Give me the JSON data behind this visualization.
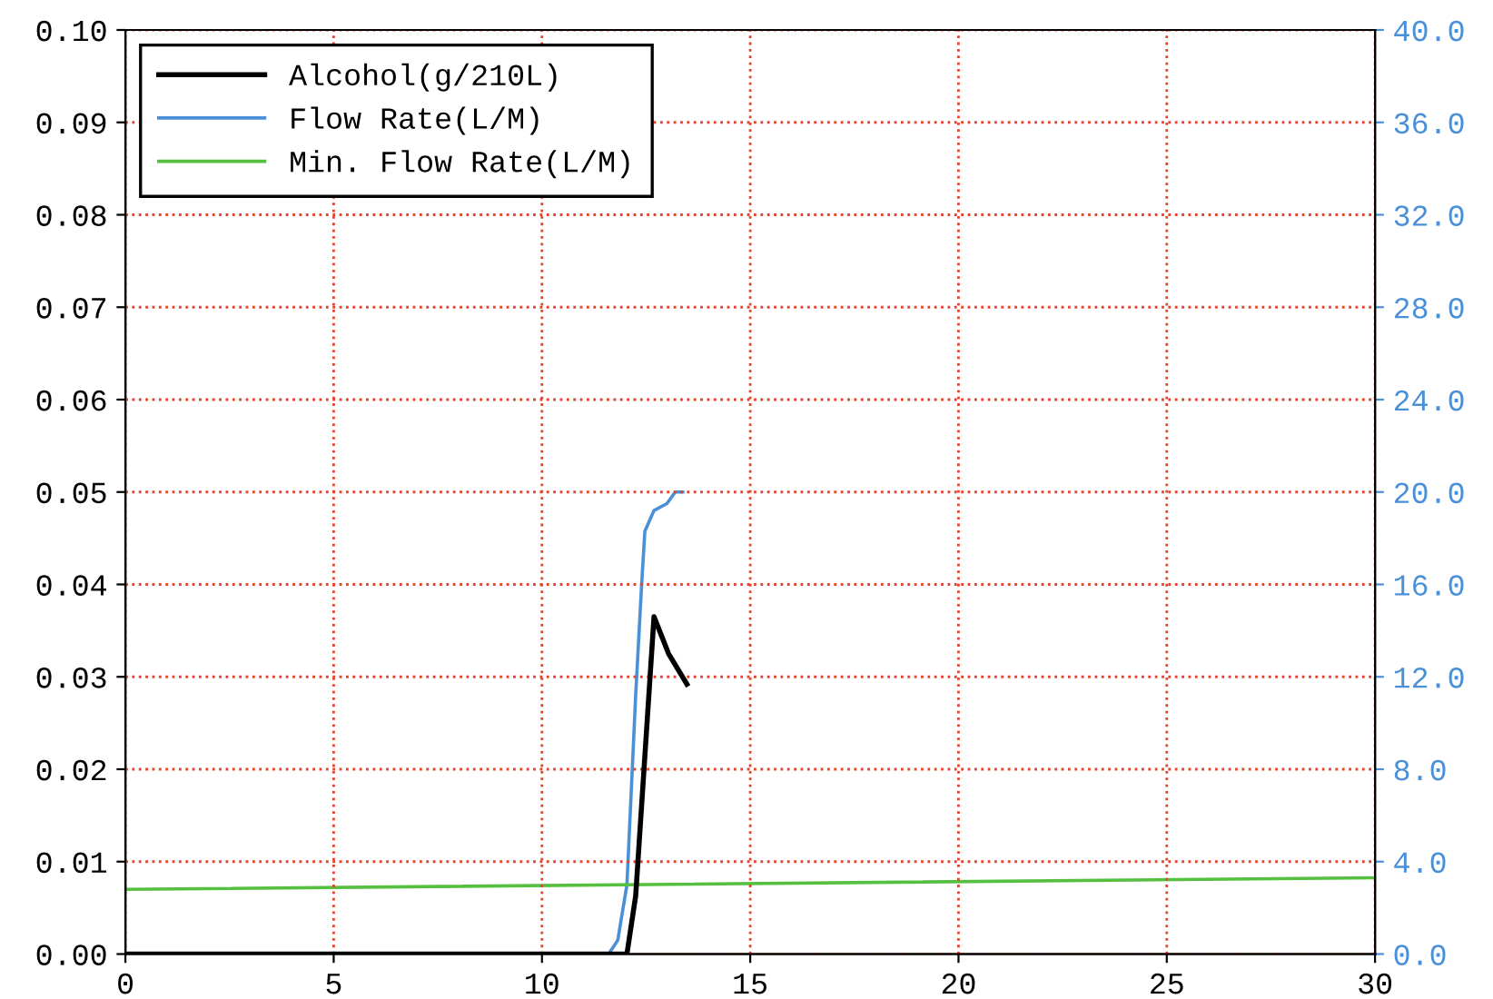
{
  "chart_data": {
    "type": "line",
    "xlim": [
      0,
      30
    ],
    "xticks": [
      0,
      5,
      10,
      15,
      20,
      25,
      30
    ],
    "ylim": [
      0,
      0.1
    ],
    "yticks": [
      {
        "value": 0,
        "label": "0.00"
      },
      {
        "value": 0.01,
        "label": "0.01"
      },
      {
        "value": 0.02,
        "label": "0.02"
      },
      {
        "value": 0.03,
        "label": "0.03"
      },
      {
        "value": 0.04,
        "label": "0.04"
      },
      {
        "value": 0.05,
        "label": "0.05"
      },
      {
        "value": 0.06,
        "label": "0.06"
      },
      {
        "value": 0.07,
        "label": "0.07"
      },
      {
        "value": 0.08,
        "label": "0.08"
      },
      {
        "value": 0.09,
        "label": "0.09"
      },
      {
        "value": 0.1,
        "label": "0.10"
      }
    ],
    "y2lim": [
      0,
      40
    ],
    "y2ticks": [
      {
        "value": 0,
        "label": "0.0"
      },
      {
        "value": 4,
        "label": "4.0"
      },
      {
        "value": 8,
        "label": "8.0"
      },
      {
        "value": 12,
        "label": "12.0"
      },
      {
        "value": 16,
        "label": "16.0"
      },
      {
        "value": 20,
        "label": "20.0"
      },
      {
        "value": 24,
        "label": "24.0"
      },
      {
        "value": 28,
        "label": "28.0"
      },
      {
        "value": 32,
        "label": "32.0"
      },
      {
        "value": 36,
        "label": "36.0"
      },
      {
        "value": 40,
        "label": "40.0"
      }
    ],
    "grid": true,
    "legend": "top left",
    "series": [
      {
        "name": "Alcohol(g/210L)",
        "color": "#000000",
        "x": [
          0,
          12.04,
          12.25,
          12.69,
          13.04,
          13.48
        ],
        "values": [
          0,
          0,
          0.0063,
          0.0365,
          0.0325,
          0.0292
        ]
      },
      {
        "name": "Flow Rate(L/M)",
        "color": "#4a90d9",
        "axis": "y2",
        "x": [
          11.6,
          11.82,
          12.04,
          12.25,
          12.39,
          12.47,
          12.69,
          13.0,
          13.2,
          13.38
        ],
        "values": [
          0,
          0.6,
          3.0,
          11.2,
          15.9,
          18.3,
          19.2,
          19.5,
          20.0,
          20.0
        ]
      },
      {
        "name": "Min. Flow Rate(L/M)",
        "color": "#55c040",
        "axis": "y2",
        "x": [
          0,
          30
        ],
        "values": [
          2.8,
          3.3
        ]
      }
    ]
  }
}
